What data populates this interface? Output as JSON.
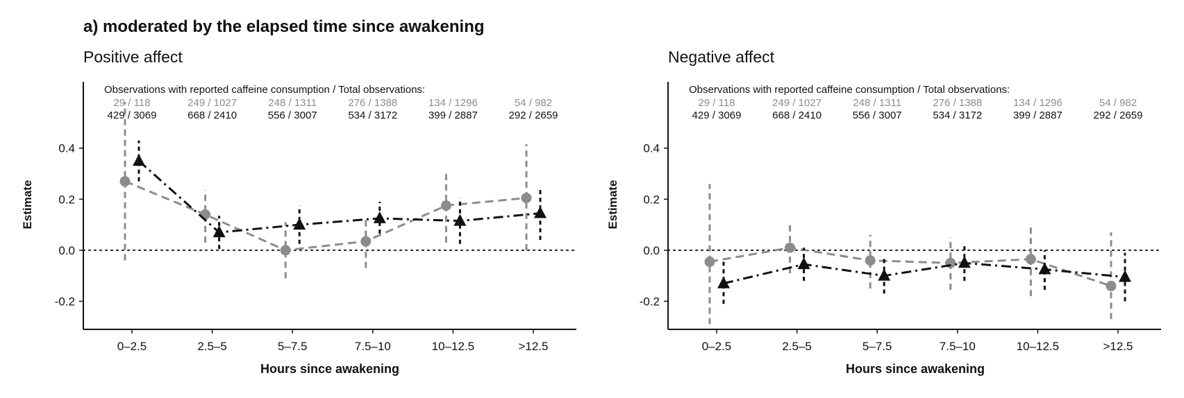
{
  "figure_title": "a) moderated by the elapsed time since awakening",
  "colors": {
    "series_a": "#8c8c8c",
    "series_b": "#111111",
    "axis": "#111111"
  },
  "chart_data": [
    {
      "type": "line",
      "title": "Positive affect",
      "xlabel": "Hours since awakening",
      "ylabel": "Estimate",
      "ylim": [
        -0.31,
        0.66
      ],
      "yticks": [
        "0.4",
        "0.2",
        "0.0",
        "-0.2"
      ],
      "ytick_values": [
        0.4,
        0.2,
        0.0,
        -0.2
      ],
      "reference_line": 0,
      "categories": [
        "0–2.5",
        "2.5–5",
        "5–7.5",
        "7.5–10",
        "10–12.5",
        ">12.5"
      ],
      "obs_header": "Observations with reported caffeine consumption / Total observations:",
      "obs_counts": {
        "series_a": [
          "29 / 118",
          "249 / 1027",
          "248 / 1311",
          "276 / 1388",
          "134 / 1296",
          "54 / 982"
        ],
        "series_b": [
          "429 / 3069",
          "668 / 2410",
          "556 / 3007",
          "534 / 3172",
          "399 / 2887",
          "292 / 2659"
        ]
      },
      "series": [
        {
          "name": "gray-circle",
          "marker": "circle",
          "color": "#8c8c8c",
          "values": [
            0.27,
            0.14,
            0.0,
            0.035,
            0.175,
            0.205
          ],
          "lower": [
            -0.04,
            0.03,
            -0.11,
            -0.07,
            0.03,
            0.0
          ],
          "upper": [
            0.58,
            0.235,
            0.11,
            0.12,
            0.315,
            0.415
          ]
        },
        {
          "name": "black-triangle",
          "marker": "triangle",
          "color": "#111111",
          "values": [
            0.35,
            0.07,
            0.1,
            0.125,
            0.115,
            0.145
          ],
          "lower": [
            0.27,
            0.005,
            0.025,
            0.065,
            0.025,
            0.04
          ],
          "upper": [
            0.43,
            0.135,
            0.175,
            0.19,
            0.205,
            0.245
          ]
        }
      ]
    },
    {
      "type": "line",
      "title": "Negative affect",
      "xlabel": "Hours since awakening",
      "ylabel": "Estimate",
      "ylim": [
        -0.31,
        0.66
      ],
      "yticks": [
        "0.4",
        "0.2",
        "0.0",
        "-0.2"
      ],
      "ytick_values": [
        0.4,
        0.2,
        0.0,
        -0.2
      ],
      "reference_line": 0,
      "categories": [
        "0–2.5",
        "2.5–5",
        "5–7.5",
        "7.5–10",
        "10–12.5",
        ">12.5"
      ],
      "obs_header": "Observations with reported caffeine consumption / Total observations:",
      "obs_counts": {
        "series_a": [
          "29 / 118",
          "249 / 1027",
          "248 / 1311",
          "276 / 1388",
          "134 / 1296",
          "54 / 982"
        ],
        "series_b": [
          "429 / 3069",
          "668 / 2410",
          "556 / 3007",
          "534 / 3172",
          "399 / 2887",
          "292 / 2659"
        ]
      },
      "series": [
        {
          "name": "gray-circle",
          "marker": "circle",
          "color": "#8c8c8c",
          "values": [
            -0.045,
            0.01,
            -0.04,
            -0.05,
            -0.035,
            -0.14
          ],
          "lower": [
            -0.29,
            -0.09,
            -0.15,
            -0.155,
            -0.18,
            -0.27
          ],
          "upper": [
            0.26,
            0.105,
            0.06,
            0.05,
            0.1,
            0.07
          ]
        },
        {
          "name": "black-triangle",
          "marker": "triangle",
          "color": "#111111",
          "values": [
            -0.13,
            -0.055,
            -0.1,
            -0.05,
            -0.075,
            -0.105
          ],
          "lower": [
            -0.21,
            -0.12,
            -0.17,
            -0.12,
            -0.155,
            -0.2
          ],
          "upper": [
            -0.045,
            0.01,
            -0.03,
            0.02,
            0.0,
            -0.01
          ]
        }
      ]
    }
  ]
}
